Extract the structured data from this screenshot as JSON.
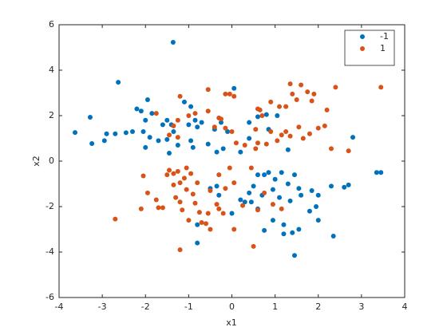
{
  "chart_data": {
    "type": "scatter",
    "xlabel": "x1",
    "ylabel": "x2",
    "xlim": [
      -4,
      4
    ],
    "ylim": [
      -6,
      6
    ],
    "xticks": [
      -4,
      -3,
      -2,
      -1,
      0,
      1,
      2,
      3,
      4
    ],
    "yticks": [
      -6,
      -4,
      -2,
      0,
      2,
      4,
      6
    ],
    "legend": "northeast",
    "series": [
      {
        "name": "-1",
        "color": "#0072bd",
        "x": [
          -1.36,
          -2.63,
          -3.28,
          -3.63,
          -3.24,
          -2.95,
          -2.9,
          -2.7,
          -2.45,
          -2.3,
          -2.2,
          -2.1,
          -1.95,
          -1.85,
          -2.0,
          -2.05,
          -1.9,
          -2.0,
          -1.7,
          -1.6,
          -1.5,
          -1.4,
          -1.35,
          -1.5,
          -1.45,
          -1.25,
          -1.1,
          -0.95,
          -1.0,
          -0.85,
          -0.8,
          -0.95,
          -0.9,
          -0.7,
          -0.55,
          -0.4,
          -0.25,
          -0.1,
          -0.2,
          0.05,
          -0.35,
          0.2,
          0.4,
          0.4,
          0.6,
          0.8,
          1.05,
          0.85,
          2.8,
          1.3,
          3.35,
          3.45,
          2.7,
          2.6,
          2.3,
          2.0,
          1.85,
          1.6,
          1.55,
          1.45,
          1.3,
          1.15,
          1.0,
          0.95,
          0.85,
          0.7,
          0.6,
          0.75,
          0.5,
          0.4,
          0.3,
          0.2,
          0.0,
          -0.35,
          -0.3,
          -0.5,
          0.6,
          0.95,
          1.1,
          1.2,
          1.2,
          1.4,
          1.55,
          1.45,
          2.35,
          1.95,
          1.8,
          0.75,
          -0.8,
          -0.8,
          0.45,
          1.35,
          2.0
        ],
        "y": [
          5.23,
          3.47,
          1.93,
          1.26,
          0.77,
          0.9,
          1.2,
          1.2,
          1.25,
          1.3,
          2.3,
          2.2,
          2.7,
          2.1,
          1.8,
          1.3,
          1.05,
          0.6,
          0.9,
          1.6,
          1.8,
          1.6,
          1.3,
          0.95,
          0.35,
          0.7,
          2.6,
          2.4,
          1.6,
          1.8,
          1.5,
          0.9,
          0.6,
          1.7,
          0.75,
          1.4,
          1.7,
          1.3,
          0.55,
          3.2,
          0.4,
          0.4,
          1.0,
          1.7,
          1.95,
          2.05,
          2.0,
          1.4,
          1.05,
          0.5,
          -0.5,
          -0.5,
          -1.05,
          -1.15,
          -1.1,
          -1.5,
          -1.3,
          -1.5,
          -1.2,
          -0.6,
          -1.0,
          -0.5,
          -0.8,
          -1.25,
          -0.5,
          -1.5,
          -0.6,
          -0.6,
          -1.1,
          -1.4,
          -1.8,
          -1.7,
          -2.3,
          -1.1,
          -1.5,
          -1.2,
          -2.1,
          -2.6,
          -1.6,
          -2.8,
          -3.2,
          -3.15,
          -3.0,
          -4.15,
          -3.3,
          -2.0,
          -2.2,
          -3.05,
          -3.6,
          -2.8,
          -1.8,
          -1.75,
          -2.6
        ]
      },
      {
        "name": "1",
        "color": "#d95319",
        "x": [
          -1.2,
          -0.55,
          -0.15,
          -0.05,
          0.05,
          0.65,
          0.6,
          0.9,
          1.1,
          1.35,
          1.4,
          1.5,
          1.6,
          1.75,
          1.9,
          1.85,
          2.4,
          3.45,
          2.2,
          2.15,
          2.0,
          1.65,
          1.55,
          1.35,
          1.25,
          1.25,
          0.9,
          0.7,
          0.55,
          0.3,
          0.1,
          0.0,
          -0.15,
          -0.25,
          -0.4,
          -0.55,
          -0.85,
          -1.0,
          -1.25,
          -1.35,
          -1.45,
          -1.25,
          -1.75,
          -0.3,
          0.55,
          0.6,
          0.8,
          1.05,
          1.8,
          2.3,
          2.7,
          1.15,
          -2.05,
          -1.95,
          -1.75,
          -1.7,
          -1.6,
          -2.1,
          -2.7,
          -1.45,
          -1.5,
          -1.35,
          -1.35,
          -1.25,
          -1.2,
          -1.1,
          -1.05,
          -1.05,
          -0.95,
          -0.9,
          -0.8,
          -1.3,
          -1.2,
          -0.85,
          -1.15,
          -1.0,
          -0.75,
          -0.55,
          -0.6,
          -0.5,
          -0.2,
          -0.3,
          -0.35,
          -0.15,
          -0.05,
          -0.3,
          -0.5,
          0.05,
          0.25,
          0.45,
          0.6,
          0.05,
          0.5,
          -1.2,
          0.75,
          0.95,
          1.15,
          -0.7
        ],
        "y": [
          2.85,
          3.15,
          2.95,
          2.95,
          2.85,
          2.25,
          2.3,
          2.6,
          2.4,
          3.4,
          2.95,
          2.7,
          3.35,
          3.05,
          2.95,
          2.65,
          3.25,
          3.25,
          2.25,
          1.55,
          1.45,
          1.0,
          1.5,
          1.1,
          1.3,
          2.4,
          1.3,
          2.0,
          1.4,
          0.7,
          0.8,
          1.3,
          1.45,
          1.85,
          1.5,
          2.2,
          2.1,
          2.0,
          1.8,
          1.55,
          1.15,
          1.05,
          2.1,
          1.9,
          0.55,
          0.8,
          0.75,
          0.9,
          1.2,
          0.55,
          0.45,
          1.15,
          -0.65,
          -1.4,
          -1.7,
          -2.05,
          -2.05,
          -2.1,
          -2.55,
          -0.4,
          -0.6,
          -0.55,
          -1.05,
          -0.45,
          -0.95,
          -0.75,
          -0.3,
          -1.25,
          -0.55,
          -1.45,
          -0.95,
          -1.6,
          -1.8,
          -1.85,
          -2.15,
          -2.6,
          -2.25,
          -2.3,
          -2.75,
          -3.0,
          -2.3,
          -2.1,
          -1.9,
          -1.2,
          -0.3,
          -0.6,
          -1.3,
          -0.95,
          -1.95,
          -0.3,
          -2.15,
          -3.0,
          -3.75,
          -3.9,
          -1.4,
          -1.9,
          -2.1,
          -2.7
        ]
      }
    ]
  }
}
